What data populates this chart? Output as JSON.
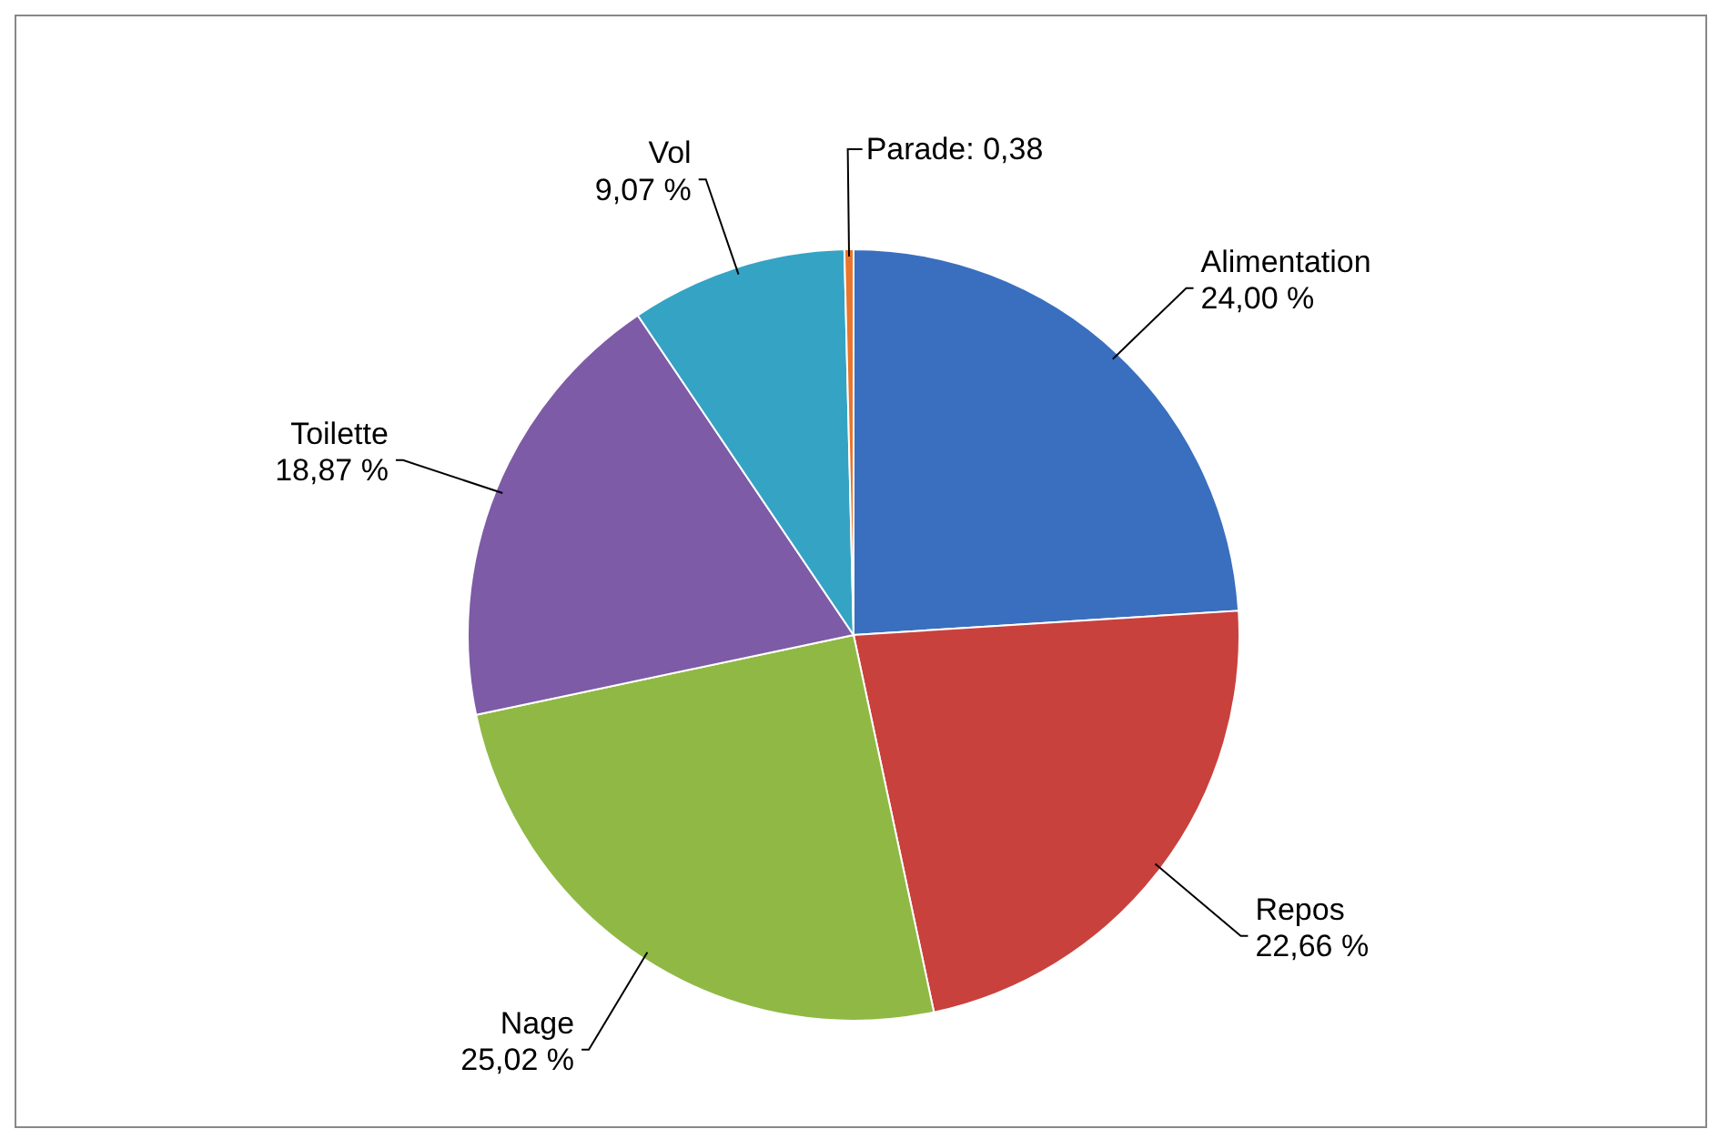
{
  "chart_data": {
    "type": "pie",
    "categories": [
      "Alimentation",
      "Repos",
      "Nage",
      "Toilette",
      "Vol",
      "Parade"
    ],
    "values": [
      24.0,
      22.66,
      25.02,
      18.87,
      9.07,
      0.38
    ],
    "value_labels": [
      "24,00 %",
      "22,66 %",
      "25,02 %",
      "18,87 %",
      "9,07 %",
      "0,38"
    ],
    "colors": [
      "#3a6fbf",
      "#c8413d",
      "#8fb944",
      "#7d5ba6",
      "#35a3c4",
      "#e8762c"
    ],
    "legend": false
  }
}
